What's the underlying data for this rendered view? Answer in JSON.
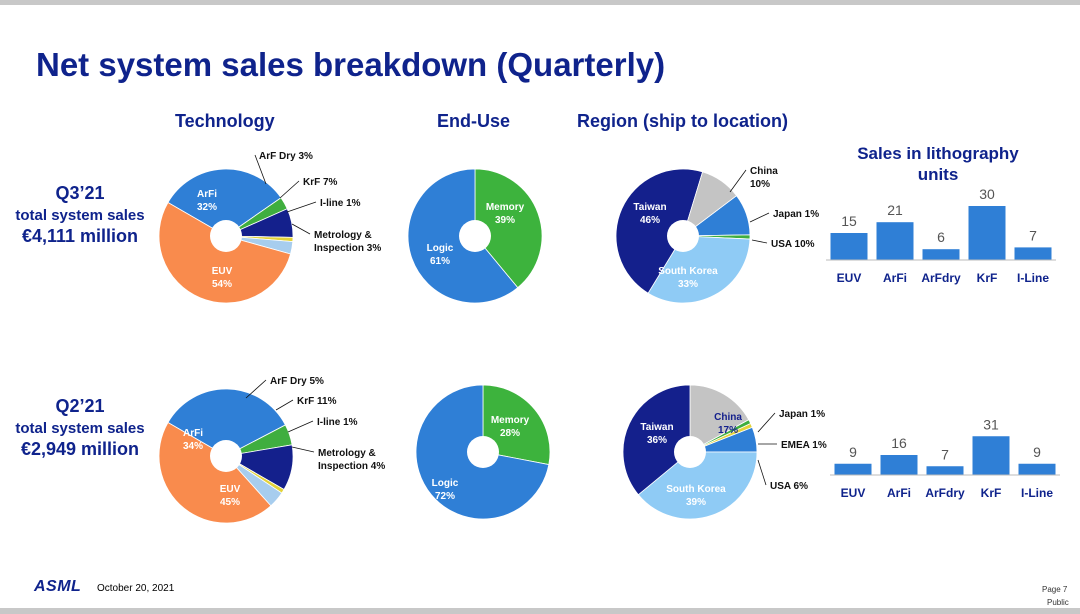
{
  "slide": {
    "title": "Net system sales breakdown (Quarterly)",
    "headers": {
      "technology": "Technology",
      "end_use": "End-Use",
      "region": "Region (ship to location)",
      "units_title_line1": "Sales in lithography",
      "units_title_line2": "units"
    },
    "quarters": [
      {
        "label": "Q3’21",
        "sub": "total system sales",
        "value": "€4,111 million"
      },
      {
        "label": "Q2’21",
        "sub": "total system sales",
        "value": "€2,949 million"
      }
    ],
    "footer": {
      "logo": "ASML",
      "date": "October 20, 2021",
      "page": "Page 7",
      "classification": "Public"
    }
  },
  "colors": {
    "title": "#0f238c",
    "euv": "#f98b4d",
    "arfi": "#2f7fd6",
    "arf_dry": "#3fae3f",
    "krf": "#14208c",
    "iline": "#e3d33a",
    "metrology": "#a7cdee",
    "logic": "#2f7fd6",
    "memory": "#3db33d",
    "taiwan": "#14208c",
    "south_korea": "#8fcbf5",
    "china": "#c4c4c4",
    "japan": "#3fae3f",
    "emea": "#e3d33a",
    "usa": "#2f7fd6",
    "bar": "#2f7fd6"
  },
  "chart_data": [
    {
      "type": "pie",
      "panel": "Technology",
      "quarter": "Q3’21",
      "slices": [
        {
          "name": "EUV",
          "value": 54,
          "label": "EUV",
          "pct": "54%"
        },
        {
          "name": "ArFi",
          "value": 32,
          "label": "ArFi",
          "pct": "32%"
        },
        {
          "name": "ArF Dry",
          "value": 3,
          "label": "ArF Dry 3%"
        },
        {
          "name": "KrF",
          "value": 7,
          "label": "KrF 7%"
        },
        {
          "name": "I-line",
          "value": 1,
          "label": "I-line 1%"
        },
        {
          "name": "Metrology & Inspection",
          "value": 3,
          "label": "Metrology &",
          "label2": "Inspection 3%"
        }
      ]
    },
    {
      "type": "pie",
      "panel": "End-Use",
      "quarter": "Q3’21",
      "slices": [
        {
          "name": "Logic",
          "value": 61,
          "label": "Logic",
          "pct": "61%"
        },
        {
          "name": "Memory",
          "value": 39,
          "label": "Memory",
          "pct": "39%"
        }
      ]
    },
    {
      "type": "pie",
      "panel": "Region (ship to location)",
      "quarter": "Q3’21",
      "slices": [
        {
          "name": "Taiwan",
          "value": 46,
          "label": "Taiwan",
          "pct": "46%"
        },
        {
          "name": "South Korea",
          "value": 33,
          "label": "South Korea",
          "pct": "33%"
        },
        {
          "name": "USA",
          "value": 10,
          "label": "USA 10%"
        },
        {
          "name": "Japan",
          "value": 1,
          "label": "Japan 1%"
        },
        {
          "name": "China",
          "value": 10,
          "label": "China",
          "pct": "10%"
        }
      ]
    },
    {
      "type": "bar",
      "panel": "Sales in lithography units",
      "quarter": "Q3’21",
      "categories": [
        "EUV",
        "ArFi",
        "ArFdry",
        "KrF",
        "I-Line"
      ],
      "values": [
        15,
        21,
        6,
        30,
        7
      ]
    },
    {
      "type": "pie",
      "panel": "Technology",
      "quarter": "Q2’21",
      "slices": [
        {
          "name": "EUV",
          "value": 45,
          "label": "EUV",
          "pct": "45%"
        },
        {
          "name": "ArFi",
          "value": 34,
          "label": "ArFi",
          "pct": "34%"
        },
        {
          "name": "ArF Dry",
          "value": 5,
          "label": "ArF Dry 5%"
        },
        {
          "name": "KrF",
          "value": 11,
          "label": "KrF 11%"
        },
        {
          "name": "I-line",
          "value": 1,
          "label": "I-line 1%"
        },
        {
          "name": "Metrology & Inspection",
          "value": 4,
          "label": "Metrology &",
          "label2": "Inspection 4%"
        }
      ]
    },
    {
      "type": "pie",
      "panel": "End-Use",
      "quarter": "Q2’21",
      "slices": [
        {
          "name": "Logic",
          "value": 72,
          "label": "Logic",
          "pct": "72%"
        },
        {
          "name": "Memory",
          "value": 28,
          "label": "Memory",
          "pct": "28%"
        }
      ]
    },
    {
      "type": "pie",
      "panel": "Region (ship to location)",
      "quarter": "Q2’21",
      "slices": [
        {
          "name": "Taiwan",
          "value": 36,
          "label": "Taiwan",
          "pct": "36%"
        },
        {
          "name": "South Korea",
          "value": 39,
          "label": "South Korea",
          "pct": "39%"
        },
        {
          "name": "USA",
          "value": 6,
          "label": "USA 6%"
        },
        {
          "name": "EMEA",
          "value": 1,
          "label": "EMEA 1%"
        },
        {
          "name": "Japan",
          "value": 1,
          "label": "Japan 1%"
        },
        {
          "name": "China",
          "value": 17,
          "label": "China",
          "pct": "17%"
        }
      ]
    },
    {
      "type": "bar",
      "panel": "Sales in lithography units",
      "quarter": "Q2’21",
      "categories": [
        "EUV",
        "ArFi",
        "ArFdry",
        "KrF",
        "I-Line"
      ],
      "values": [
        9,
        16,
        7,
        31,
        9
      ]
    }
  ]
}
